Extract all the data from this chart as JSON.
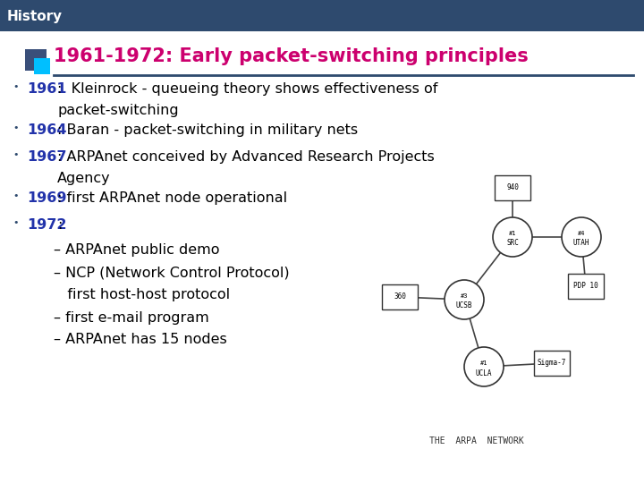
{
  "header_text": "History",
  "header_bg": "#2e4a6e",
  "header_text_color": "#ffffff",
  "slide_bg": "#ffffff",
  "outer_bg": "#d0d0d0",
  "title": "1961-1972: Early packet-switching principles",
  "title_color": "#cc006e",
  "title_underline_color": "#2e4a6e",
  "icon_dark": "#3a4f7a",
  "icon_light": "#00bfff",
  "bullet_color": "#2e4a6e",
  "year_color": "#2233aa",
  "text_color": "#000000",
  "network_label": "THE  ARPA  NETWORK"
}
